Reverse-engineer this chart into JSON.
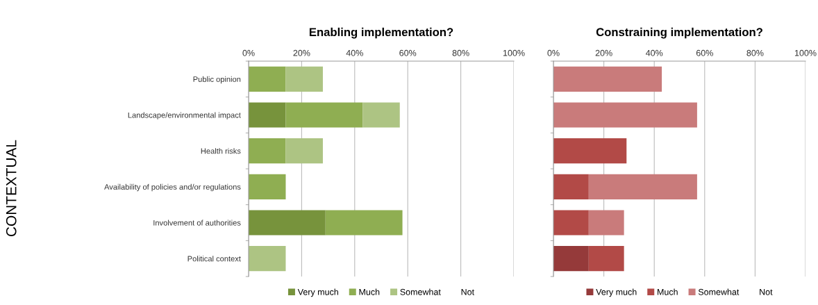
{
  "chart_data": [
    {
      "type": "bar",
      "title": "Enabling implementation?",
      "ylabel": "CONTEXTUAL",
      "orientation": "horizontal",
      "stacked": true,
      "categories": [
        "Public opinion",
        "Landscape/environmental impact",
        "Health risks",
        "Availability of policies and/or regulations",
        "Involvement of authorities",
        "Political context"
      ],
      "series": [
        {
          "name": "Very much",
          "color": "#77933c",
          "values": [
            0,
            14,
            0,
            0,
            29,
            0
          ]
        },
        {
          "name": "Much",
          "color": "#8fae52",
          "values": [
            14,
            29,
            14,
            14,
            29,
            0
          ]
        },
        {
          "name": "Somewhat",
          "color": "#adc483",
          "values": [
            14,
            14,
            14,
            0,
            0,
            14
          ]
        },
        {
          "name": "Not",
          "values": [
            null,
            null,
            null,
            null,
            null,
            null
          ]
        }
      ],
      "xlim": [
        0,
        100
      ],
      "xticks": [
        {
          "value": 0,
          "label": "0%"
        },
        {
          "value": 20,
          "label": "20%"
        },
        {
          "value": 40,
          "label": "40%"
        },
        {
          "value": 60,
          "label": "60%"
        },
        {
          "value": 80,
          "label": "80%"
        },
        {
          "value": 100,
          "label": "100%"
        }
      ],
      "grid": "x",
      "legend": "bottom"
    },
    {
      "type": "bar",
      "title": "Constraining implementation?",
      "orientation": "horizontal",
      "stacked": true,
      "categories": [
        null,
        null,
        null,
        null,
        null,
        null
      ],
      "series": [
        {
          "name": "Very much",
          "color": "#953a3a",
          "values": [
            0,
            0,
            0,
            0,
            0,
            14
          ]
        },
        {
          "name": "Much",
          "color": "#b24a47",
          "values": [
            0,
            0,
            29,
            14,
            14,
            14
          ]
        },
        {
          "name": "Somewhat",
          "color": "#c97b7b",
          "values": [
            43,
            57,
            0,
            43,
            14,
            0
          ]
        },
        {
          "name": "Not",
          "values": [
            null,
            null,
            null,
            null,
            null,
            null
          ]
        }
      ],
      "xlim": [
        0,
        100
      ],
      "xticks": [
        {
          "value": 0,
          "label": "0%"
        },
        {
          "value": 20,
          "label": "20%"
        },
        {
          "value": 40,
          "label": "40%"
        },
        {
          "value": 60,
          "label": "60%"
        },
        {
          "value": 80,
          "label": "80%"
        },
        {
          "value": 100,
          "label": "100%"
        }
      ],
      "grid": "x",
      "legend": "bottom",
      "tick_labels": "x"
    }
  ]
}
